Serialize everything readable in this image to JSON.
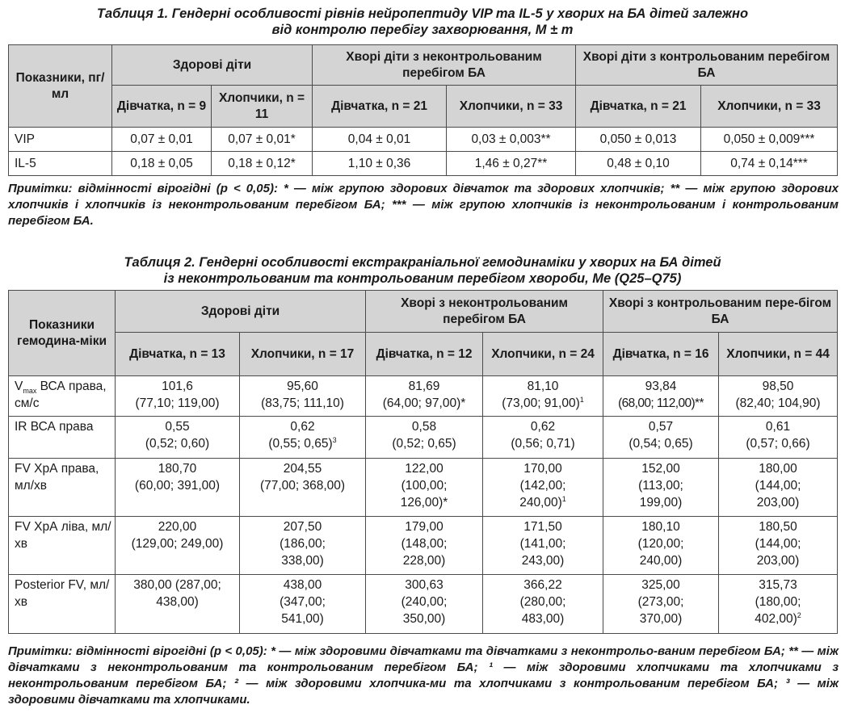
{
  "table1": {
    "caption_line1": "Таблиця 1. Гендерні особливості рівнів нейропептиду VIP та IL-5 у хворих на БА дітей залежно",
    "caption_line2": "від контролю перебігу захворювання, M ± m",
    "header": {
      "param": "Показники, пг/мл",
      "groups": [
        "Здорові діти",
        "Хворі діти з неконтрольованим перебігом БА",
        "Хворі діти з контрольованим перебігом БА"
      ],
      "sub": [
        "Дівчатка, n = 9",
        "Хлопчики, n = 11",
        "Дівчатка, n = 21",
        "Хлопчики, n = 33",
        "Дівчатка, n = 21",
        "Хлопчики, n = 33"
      ]
    },
    "rows": [
      {
        "name": "VIP",
        "cells": [
          "0,07 ± 0,01",
          "0,07 ± 0,01*",
          "0,04 ± 0,01",
          "0,03 ± 0,003**",
          "0,050 ± 0,013",
          "0,050 ± 0,009***"
        ]
      },
      {
        "name": "IL-5",
        "cells": [
          "0,18 ± 0,05",
          "0,18 ± 0,12*",
          "1,10 ± 0,36",
          "1,46 ± 0,27**",
          "0,48 ± 0,10",
          "0,74 ± 0,14***"
        ]
      }
    ],
    "note_lead": "Примітки: відмінності вірогідні (p < 0,05):",
    "note_body": " * — між групою здорових дівчаток та здорових хлопчиків; ** — між групою здорових хлопчиків і хлопчиків із неконтрольованим перебігом БА; *** — між групою хлопчиків із неконтрольованим і контрольованим перебігом БА."
  },
  "table2": {
    "caption_line1": "Таблиця 2. Гендерні особливості екстракраніальної гемодинаміки у хворих на БА дітей",
    "caption_line2": "із неконтрольованим та контрольованим перебігом хвороби, Me (Q25–Q75)",
    "header": {
      "param": "Показники гемодина-міки",
      "groups": [
        "Здорові діти",
        "Хворі з неконтрольованим перебігом БА",
        "Хворі з контрольованим пере-бігом БА"
      ],
      "sub": [
        "Дівчатка, n = 13",
        "Хлопчики, n = 17",
        "Дівчатка, n = 12",
        "Хлопчики, n = 24",
        "Дівчатка, n = 16",
        "Хлопчики, n = 44"
      ]
    },
    "rows": [
      {
        "name_pre": "V",
        "name_sub": "max",
        "name_post": " ВСА права, см/с",
        "cells": [
          {
            "v": "101,6",
            "r": "(77,10; 119,00)",
            "s": ""
          },
          {
            "v": "95,60",
            "r": "(83,75; 111,10)",
            "s": ""
          },
          {
            "v": "81,69",
            "r": "(64,00; 97,00)*",
            "s": ""
          },
          {
            "v": "81,10",
            "r": "(73,00; 91,00)",
            "s": "1"
          },
          {
            "v": "93,84",
            "r": "(68,00; 112,00)**",
            "s": ""
          },
          {
            "v": "98,50",
            "r": "(82,40; 104,90)",
            "s": ""
          }
        ]
      },
      {
        "name": "IR ВСА права",
        "cells": [
          {
            "v": "0,55",
            "r": "(0,52; 0,60)",
            "s": ""
          },
          {
            "v": "0,62",
            "r": "(0,55; 0,65)",
            "s": "3"
          },
          {
            "v": "0,58",
            "r": "(0,52; 0,65)",
            "s": ""
          },
          {
            "v": "0,62",
            "r": "(0,56; 0,71)",
            "s": ""
          },
          {
            "v": "0,57",
            "r": "(0,54; 0,65)",
            "s": ""
          },
          {
            "v": "0,61",
            "r": "(0,57; 0,66)",
            "s": ""
          }
        ]
      },
      {
        "name": "FV ХрА права, мл/хв",
        "cells": [
          {
            "v": "180,70",
            "r": "(60,00; 391,00)",
            "s": ""
          },
          {
            "v": "204,55",
            "r": "(77,00; 368,00)",
            "s": ""
          },
          {
            "v": "122,00",
            "r": "(100,00;",
            "r2": "126,00)*",
            "s": ""
          },
          {
            "v": "170,00",
            "r": "(142,00;",
            "r2": "240,00)",
            "s": "1"
          },
          {
            "v": "152,00",
            "r": "(113,00;",
            "r2": "199,00)",
            "s": ""
          },
          {
            "v": "180,00",
            "r": "(144,00;",
            "r2": "203,00)",
            "s": ""
          }
        ]
      },
      {
        "name": "FV ХрА ліва, мл/хв",
        "cells": [
          {
            "v": "220,00",
            "r": "(129,00; 249,00)",
            "s": ""
          },
          {
            "v": "207,50",
            "r": "(186,00;",
            "r2": "338,00)",
            "s": ""
          },
          {
            "v": "179,00",
            "r": "(148,00;",
            "r2": "228,00)",
            "s": ""
          },
          {
            "v": "171,50",
            "r": "(141,00;",
            "r2": "243,00)",
            "s": ""
          },
          {
            "v": "180,10",
            "r": "(120,00;",
            "r2": "240,00)",
            "s": ""
          },
          {
            "v": "180,50",
            "r": "(144,00;",
            "r2": "203,00)",
            "s": ""
          }
        ]
      },
      {
        "name": "Posterior FV, мл/хв",
        "cells": [
          {
            "v": "380,00 (287,00;",
            "r": "438,00)",
            "s": ""
          },
          {
            "v": "438,00",
            "r": "(347,00;",
            "r2": "541,00)",
            "s": ""
          },
          {
            "v": "300,63",
            "r": "(240,00;",
            "r2": "350,00)",
            "s": ""
          },
          {
            "v": "366,22",
            "r": "(280,00;",
            "r2": "483,00)",
            "s": ""
          },
          {
            "v": "325,00",
            "r": "(273,00;",
            "r2": "370,00)",
            "s": ""
          },
          {
            "v": "315,73",
            "r": "(180,00;",
            "r2": "402,00)",
            "s": "2"
          }
        ]
      }
    ],
    "note_lead": "Примітки: відмінності вірогідні (p < 0,05):",
    "note_body": " * — між здоровими дівчатками та дівчатками з неконтрольо-ваним перебігом БА; ** — між дівчатками з неконтрольованим та контрольованим перебігом БА; ¹ — між здоровими хлопчиками та хлопчиками з неконтрольованим перебігом БА; ² — між здоровими хлопчика-ми та хлопчиками з контрольованим перебігом БА; ³ — між здоровими дівчатками та хлопчиками."
  }
}
